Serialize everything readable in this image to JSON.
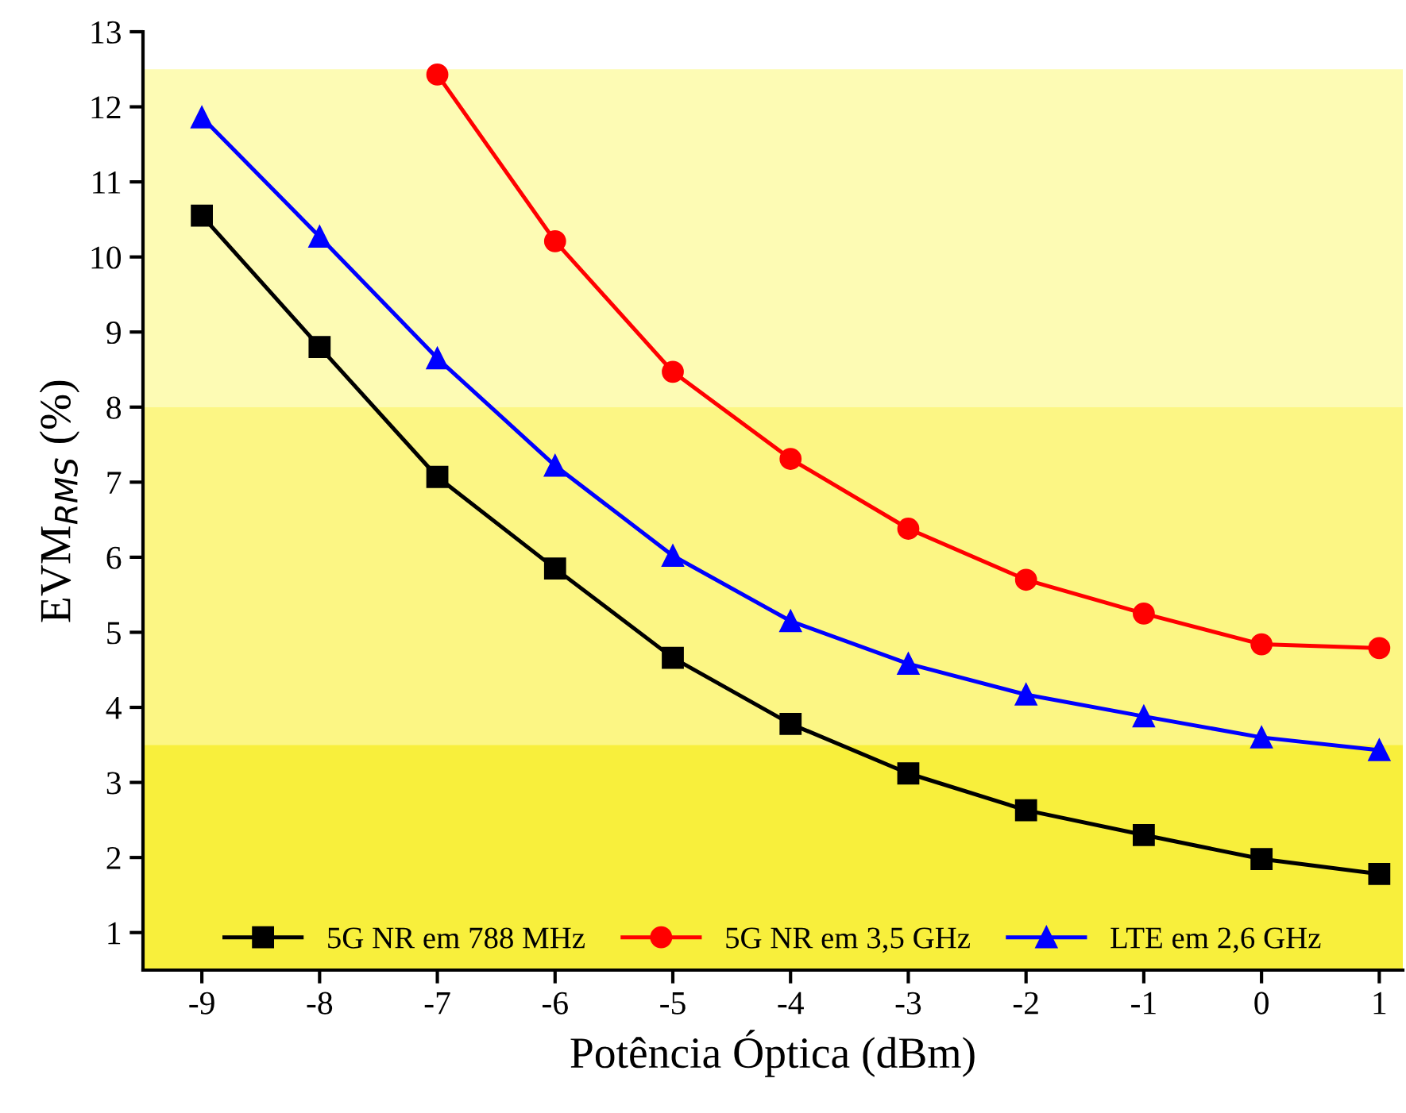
{
  "chart_data": {
    "type": "line",
    "xlabel": "Potência Óptica (dBm)",
    "ylabel": "EVM$_{RMS}$ (%)",
    "x": [
      -9,
      -8,
      -7,
      -6,
      -5,
      -4,
      -3,
      -2,
      -1,
      0,
      1
    ],
    "series": [
      {
        "name": "5G NR em 788 MHz",
        "color": "#000000",
        "marker": "square",
        "values": [
          10.55,
          8.8,
          7.07,
          5.85,
          4.66,
          3.78,
          3.12,
          2.63,
          2.3,
          1.98,
          1.78
        ]
      },
      {
        "name": "5G NR em 3,5 GHz",
        "color": "#ff0000",
        "marker": "circle",
        "values": [
          null,
          null,
          12.43,
          10.21,
          8.47,
          7.31,
          6.38,
          5.7,
          5.25,
          4.84,
          4.79
        ]
      },
      {
        "name": "LTE em 2,6 GHz",
        "color": "#0000ff",
        "marker": "triangle",
        "values": [
          11.86,
          10.27,
          8.65,
          7.22,
          6.02,
          5.15,
          4.58,
          4.17,
          3.88,
          3.6,
          3.43
        ]
      }
    ],
    "bands": [
      {
        "axis": "y",
        "from": 8,
        "to": 12.5,
        "color": "#fdfbb4"
      },
      {
        "axis": "y",
        "from": 3.5,
        "to": 8,
        "color": "#fcf684"
      },
      {
        "axis": "y",
        "from": 0.5,
        "to": 3.5,
        "color": "#f8ef3c"
      }
    ],
    "xlim": [
      -9.5,
      1.2
    ],
    "xticks": [
      -9,
      -8,
      -7,
      -6,
      -5,
      -4,
      -3,
      -2,
      -1,
      0,
      1
    ],
    "ylim": [
      0.5,
      13
    ],
    "yticks": [
      1,
      2,
      3,
      4,
      5,
      6,
      7,
      8,
      9,
      10,
      11,
      12,
      13
    ],
    "grid": false,
    "legend": "bottom",
    "line_style": "solid"
  }
}
